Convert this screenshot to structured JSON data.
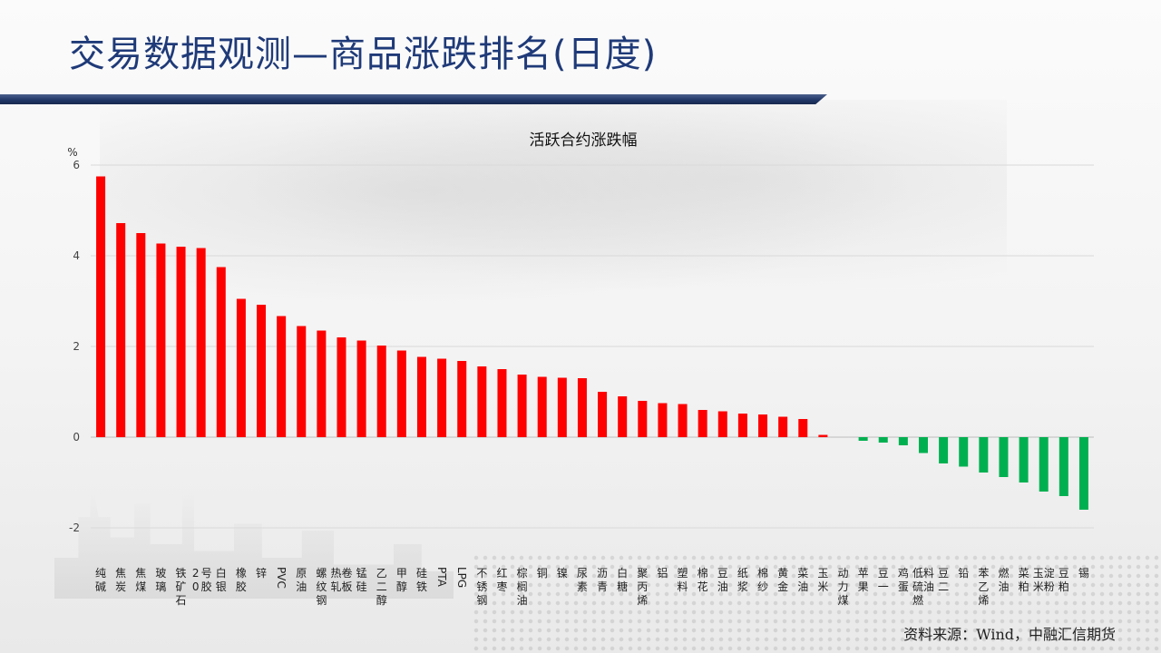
{
  "page": {
    "title": "交易数据观测—商品涨跌排名(日度)",
    "source": "资料来源：Wind，中融汇信期货"
  },
  "colors": {
    "up": "#ff0000",
    "down": "#00b050",
    "title": "#1f3a78"
  },
  "chart_data": {
    "type": "bar",
    "title": "活跃合约涨跌幅",
    "ylabel": "%",
    "ylim": [
      -2,
      6
    ],
    "yticks": [
      6,
      4,
      2,
      0,
      -2
    ],
    "grid": true,
    "categories": [
      "纯碱",
      "焦炭",
      "焦煤",
      "玻璃",
      "铁矿石",
      "20号胶",
      "白银",
      "橡胶",
      "锌",
      "PVC",
      "原油",
      "螺纹钢",
      "热轧卷板",
      "锰硅",
      "乙二醇",
      "甲醇",
      "硅铁",
      "PTA",
      "LPG",
      "不锈钢",
      "红枣",
      "棕榈油",
      "铜",
      "镍",
      "尿素",
      "沥青",
      "白糖",
      "聚丙烯",
      "铝",
      "塑料",
      "棉花",
      "豆油",
      "纸浆",
      "棉纱",
      "黄金",
      "菜油",
      "玉米",
      "动力煤",
      "苹果",
      "豆一",
      "鸡蛋",
      "低硫燃料油",
      "豆二",
      "铅",
      "苯乙烯",
      "燃油",
      "菜粕",
      "玉米淀粉",
      "豆粕",
      "锡"
    ],
    "values": [
      5.75,
      4.72,
      4.5,
      4.27,
      4.2,
      4.17,
      3.75,
      3.05,
      2.92,
      2.67,
      2.45,
      2.35,
      2.2,
      2.13,
      2.02,
      1.91,
      1.77,
      1.73,
      1.68,
      1.56,
      1.5,
      1.38,
      1.33,
      1.31,
      1.3,
      1.0,
      0.9,
      0.8,
      0.75,
      0.73,
      0.6,
      0.57,
      0.52,
      0.5,
      0.45,
      0.4,
      0.05,
      0.0,
      -0.08,
      -0.12,
      -0.18,
      -0.35,
      -0.58,
      -0.65,
      -0.78,
      -0.88,
      -1.0,
      -1.2,
      -1.3,
      -1.6
    ]
  }
}
